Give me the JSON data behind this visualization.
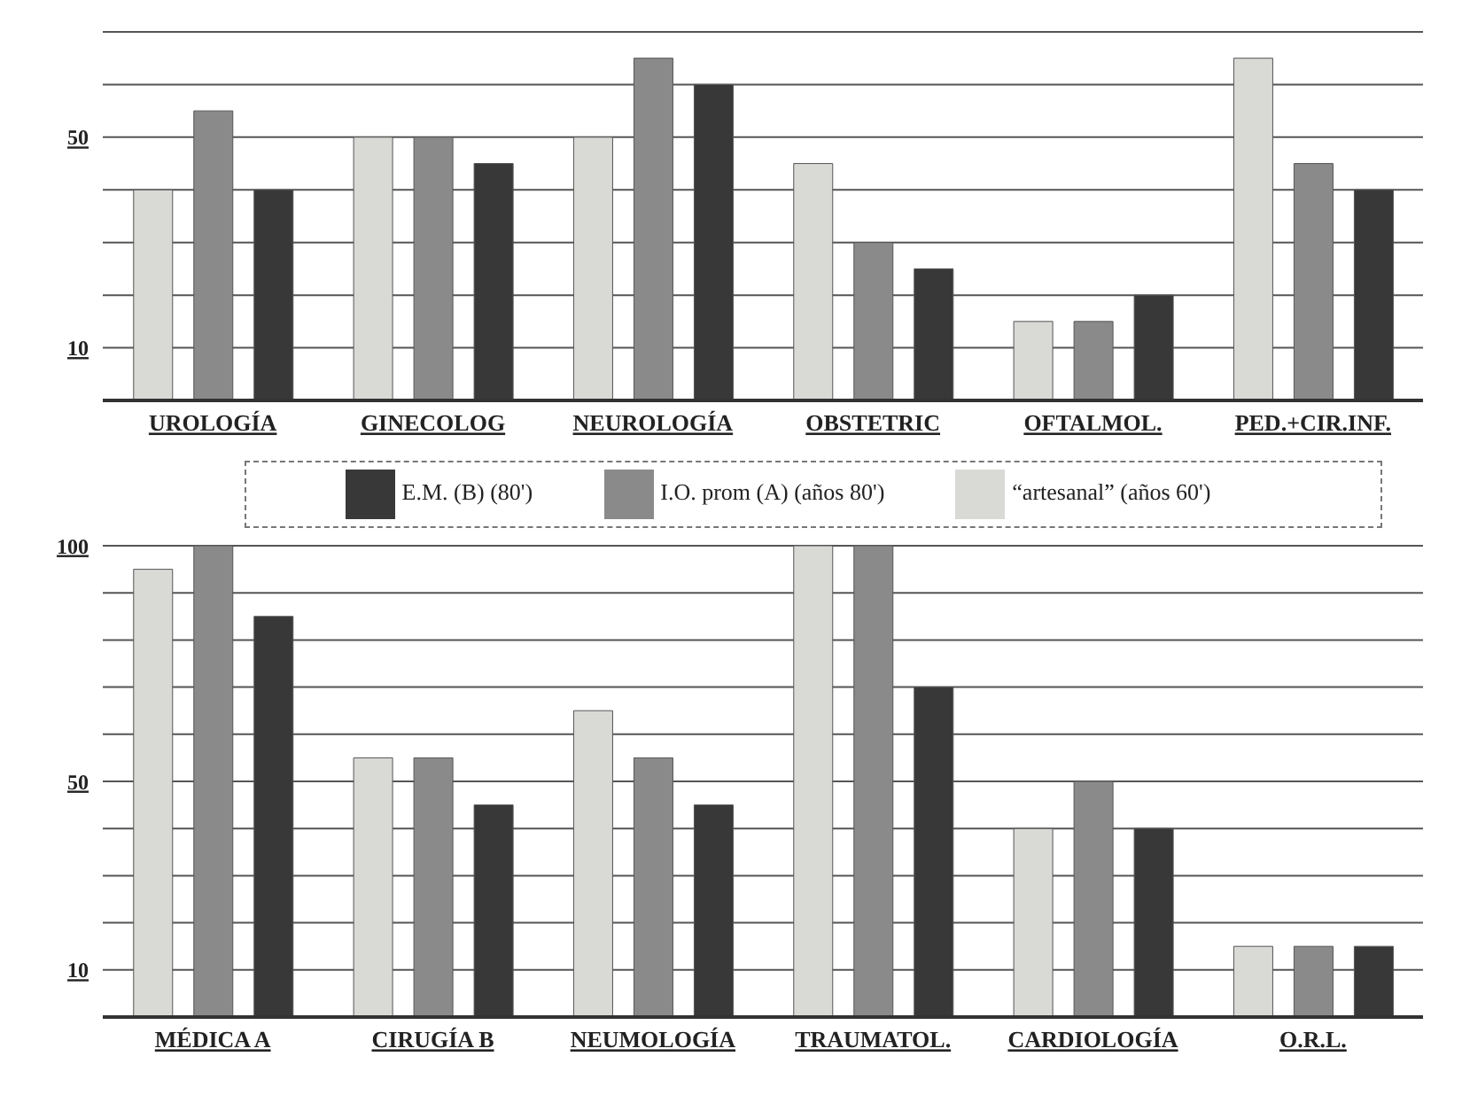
{
  "chart_data": [
    {
      "type": "bar",
      "categories": [
        "UROLOGÍA",
        "GINECOLOG",
        "NEUROLOGÍA",
        "OBSTETRIC",
        "OFTALMOL.",
        "PED.+CIR.INF."
      ],
      "series": [
        {
          "name": "“artesanal” (años 60')",
          "color": "#d9d9d6",
          "values": [
            40,
            50,
            50,
            45,
            15,
            65
          ]
        },
        {
          "name": "I.O. prom (A)  (años 80')",
          "color": "#8a8a8a",
          "values": [
            55,
            50,
            65,
            30,
            15,
            45
          ]
        },
        {
          "name": "E.M. (B) (80')",
          "color": "#383838",
          "values": [
            40,
            45,
            60,
            25,
            20,
            40
          ]
        }
      ],
      "ylim": [
        0,
        70
      ],
      "yticks": [
        {
          "value": 10,
          "label": "10"
        },
        {
          "value": 20,
          "label": null
        },
        {
          "value": 30,
          "label": null
        },
        {
          "value": 40,
          "label": null
        },
        {
          "value": 50,
          "label": "50"
        },
        {
          "value": 60,
          "label": null
        },
        {
          "value": 70,
          "label": null
        }
      ],
      "grid": "y",
      "legend": "bottom"
    },
    {
      "type": "bar",
      "categories": [
        "MÉDICA  A",
        "CIRUGÍA  B",
        "NEUMOLOGÍA",
        "TRAUMATOL.",
        "CARDIOLOGÍA",
        "O.R.L."
      ],
      "series": [
        {
          "color": "#d9d9d6",
          "values": [
            95,
            55,
            65,
            100,
            40,
            15
          ]
        },
        {
          "color": "#8a8a8a",
          "values": [
            100,
            55,
            55,
            100,
            50,
            15
          ]
        },
        {
          "color": "#383838",
          "values": [
            85,
            45,
            45,
            70,
            40,
            15
          ]
        }
      ],
      "ylim": [
        0,
        100
      ],
      "yticks": [
        {
          "value": 10,
          "label": "10"
        },
        {
          "value": 20,
          "label": null
        },
        {
          "value": 30,
          "label": null
        },
        {
          "value": 40,
          "label": null
        },
        {
          "value": 50,
          "label": "50"
        },
        {
          "value": 60,
          "label": null
        },
        {
          "value": 70,
          "label": null
        },
        {
          "value": 80,
          "label": null
        },
        {
          "value": 90,
          "label": null
        },
        {
          "value": 100,
          "label": "100"
        }
      ],
      "grid": "y",
      "legend": false
    }
  ]
}
